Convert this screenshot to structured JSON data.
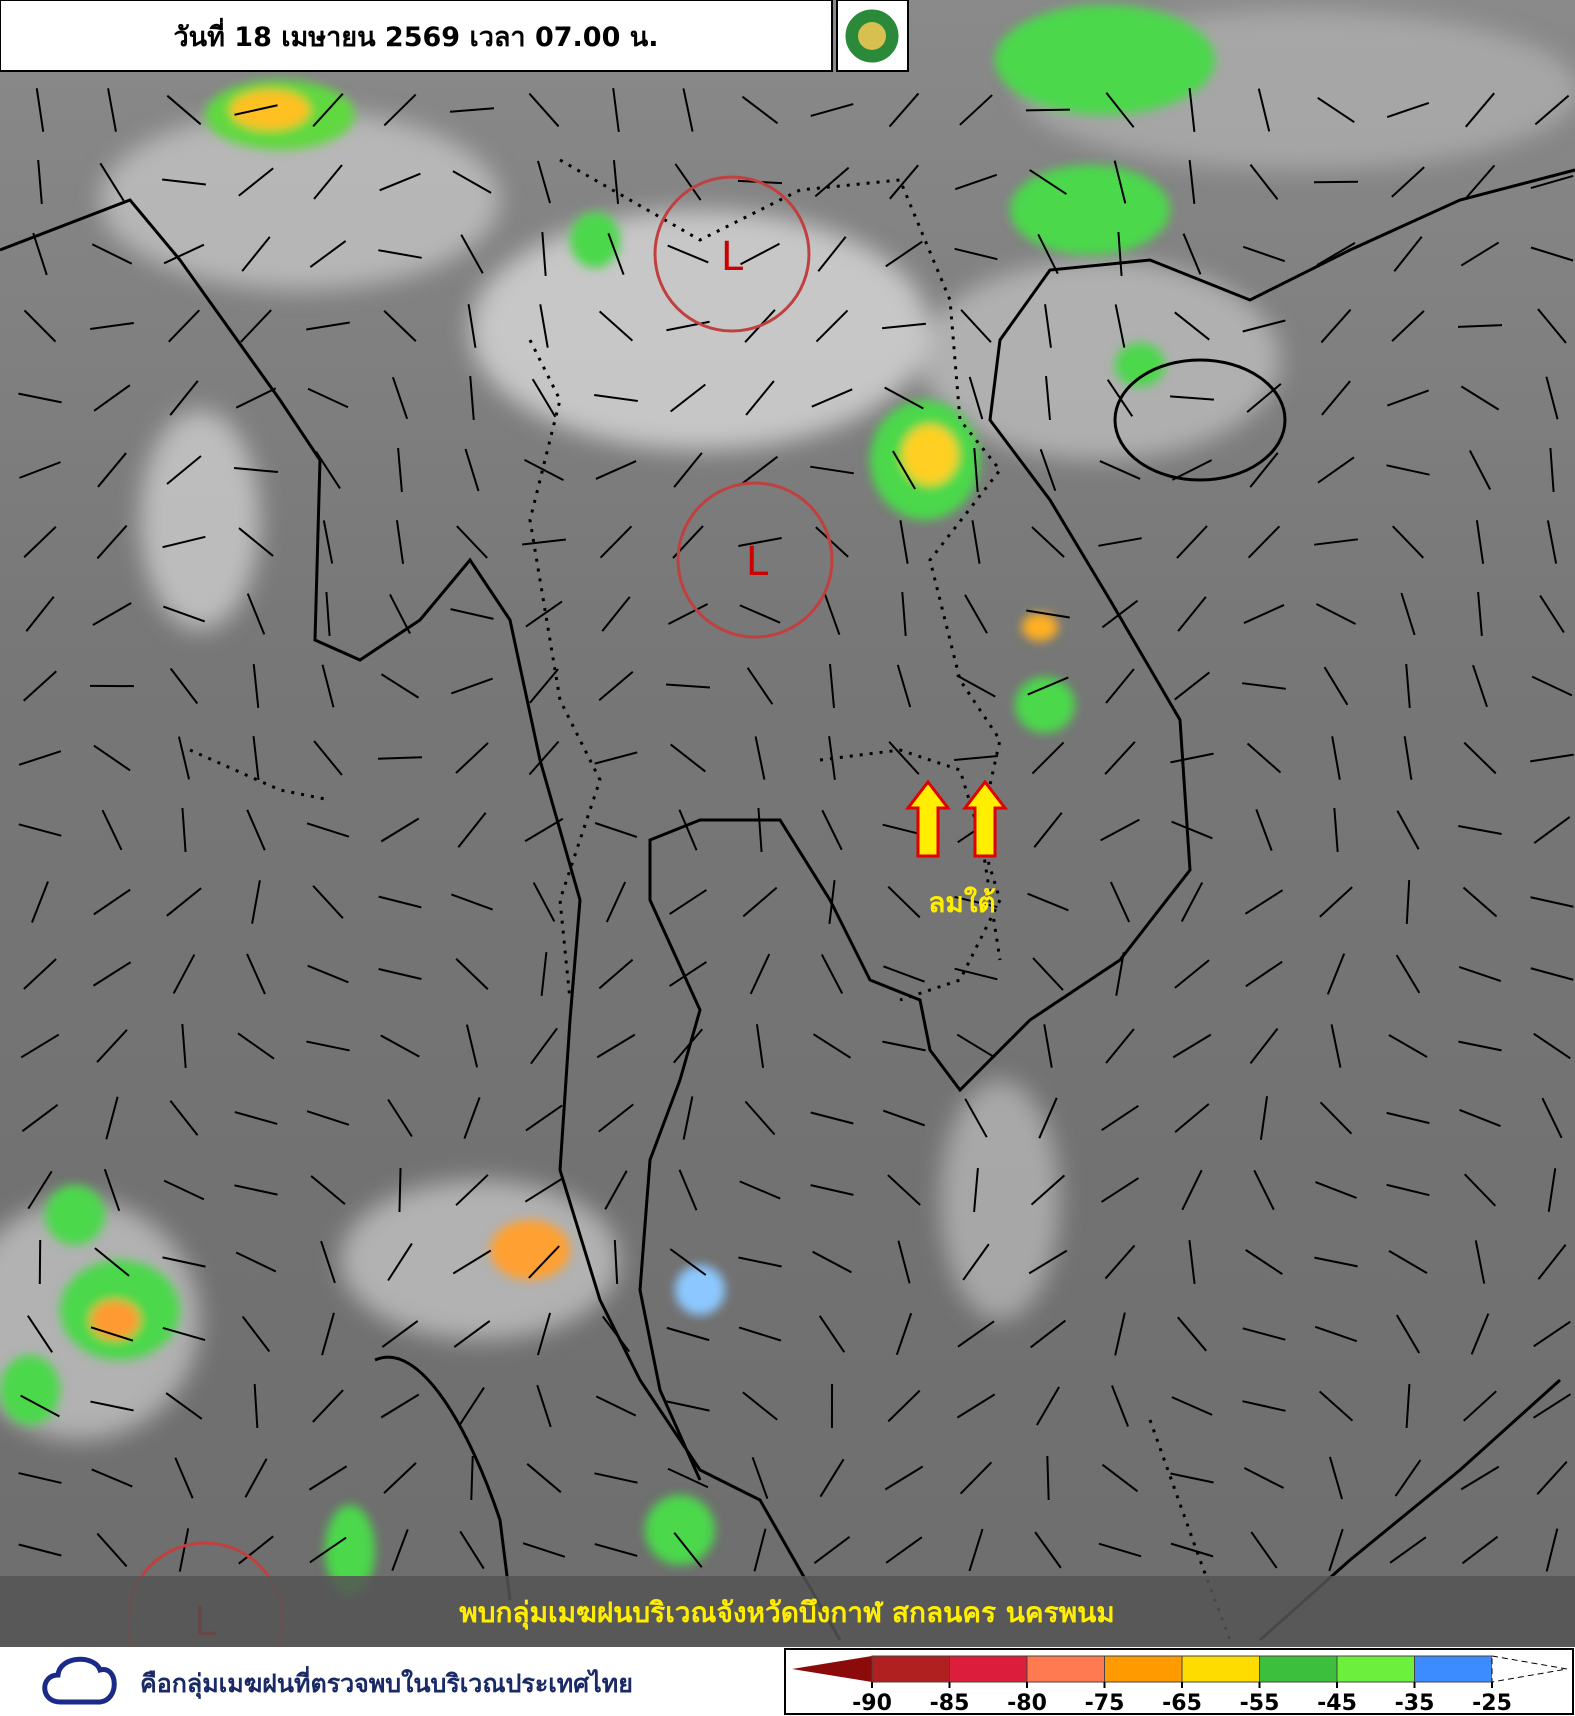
{
  "header": {
    "title": "วันที่ 18 เมษายน 2569 เวลา 07.00 น."
  },
  "map": {
    "low_pressure_labels": [
      "L",
      "L",
      "L"
    ],
    "wind_annotation": "ลมใต้",
    "caption": "พบกลุ่มเมฆฝนบริเวณจังหวัดบึงกาฬ สกลนคร นครพนม"
  },
  "legend": {
    "cloud_label": "คือกลุ่มเมฆฝนที่ตรวจพบในบริเวณประเทศไทย",
    "scale": {
      "ticks": [
        -90,
        -85,
        -80,
        -75,
        -65,
        -55,
        -45,
        -35,
        -25
      ],
      "below_color": "#8b0a0a",
      "colors": [
        "#b02020",
        "#dc1e3c",
        "#ff7a50",
        "#ff9a00",
        "#ffdc00",
        "#3cbf3c",
        "#6cf03c",
        "#3c8cff"
      ],
      "above_color": "#ffffff"
    }
  }
}
